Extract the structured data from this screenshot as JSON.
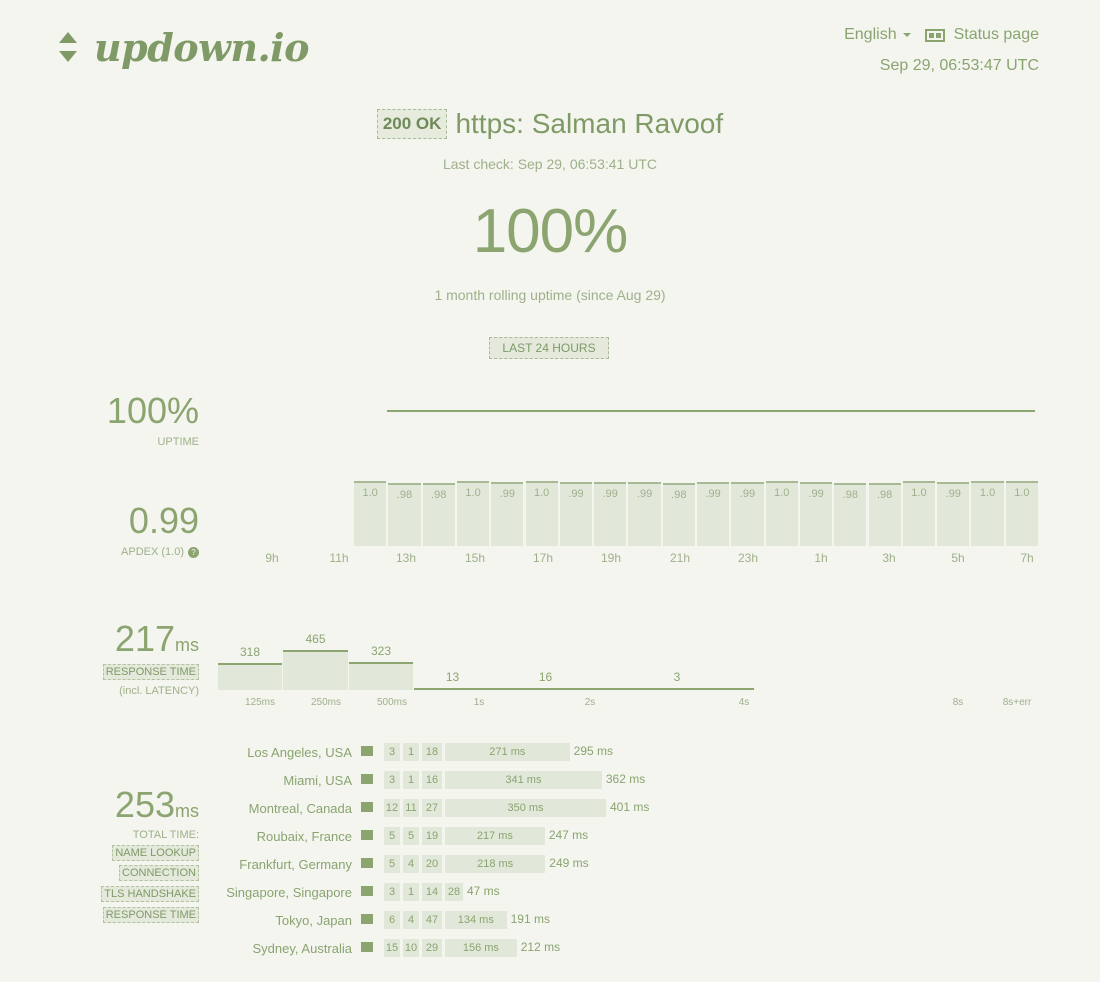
{
  "header": {
    "logo": "updown.io",
    "language": "English",
    "status_page": "Status page",
    "current_time": "Sep 29, 06:53:47 UTC"
  },
  "check": {
    "status_code": "200 OK",
    "site": "https: Salman Ravoof",
    "last_check": "Last check: Sep 29, 06:53:41 UTC",
    "uptime_big": "100%",
    "rolling": "1 month rolling uptime (since Aug 29)",
    "period_button": "LAST 24 HOURS"
  },
  "metrics": {
    "uptime_value": "100%",
    "uptime_label": "UPTIME",
    "apdex_value": "0.99",
    "apdex_label": "APDEX (1.0)",
    "response_value": "217",
    "response_unit": "ms",
    "response_label": "RESPONSE TIME",
    "response_sublabel": "(incl. LATENCY)",
    "total_value": "253",
    "total_unit": "ms",
    "total_label": "TOTAL TIME:",
    "legend": [
      "NAME LOOKUP",
      "CONNECTION",
      "TLS HANDSHAKE",
      "RESPONSE TIME"
    ]
  },
  "apdex_chart": {
    "bars": [
      "1.0",
      ".98",
      ".98",
      "1.0",
      ".99",
      "1.0",
      ".99",
      ".99",
      ".99",
      ".98",
      ".99",
      ".99",
      "1.0",
      ".99",
      ".98",
      ".98",
      "1.0",
      ".99",
      "1.0",
      "1.0"
    ],
    "x_labels": [
      "9h",
      "11h",
      "13h",
      "15h",
      "17h",
      "19h",
      "21h",
      "23h",
      "1h",
      "3h",
      "5h",
      "7h"
    ]
  },
  "response_histogram": {
    "values": [
      "318",
      "465",
      "323",
      "13",
      "16",
      "3"
    ],
    "x_labels": [
      "125ms",
      "250ms",
      "500ms",
      "1s",
      "2s",
      "4s",
      "8s",
      "8s+err"
    ]
  },
  "locations": [
    {
      "name": "Los Angeles, USA",
      "dns": "3",
      "connect": "1",
      "tls": "18",
      "response": "271 ms",
      "total": "295 ms"
    },
    {
      "name": "Miami, USA",
      "dns": "3",
      "connect": "1",
      "tls": "16",
      "response": "341 ms",
      "total": "362 ms"
    },
    {
      "name": "Montreal, Canada",
      "dns": "12",
      "connect": "11",
      "tls": "27",
      "response": "350 ms",
      "total": "401 ms"
    },
    {
      "name": "Roubaix, France",
      "dns": "5",
      "connect": "5",
      "tls": "19",
      "response": "217 ms",
      "total": "247 ms"
    },
    {
      "name": "Frankfurt, Germany",
      "dns": "5",
      "connect": "4",
      "tls": "20",
      "response": "218 ms",
      "total": "249 ms"
    },
    {
      "name": "Singapore, Singapore",
      "dns": "3",
      "connect": "1",
      "tls": "14",
      "response": "28",
      "total": "47 ms"
    },
    {
      "name": "Tokyo, Japan",
      "dns": "6",
      "connect": "4",
      "tls": "47",
      "response": "134 ms",
      "total": "191 ms"
    },
    {
      "name": "Sydney, Australia",
      "dns": "15",
      "connect": "10",
      "tls": "29",
      "response": "156 ms",
      "total": "212 ms"
    }
  ]
}
